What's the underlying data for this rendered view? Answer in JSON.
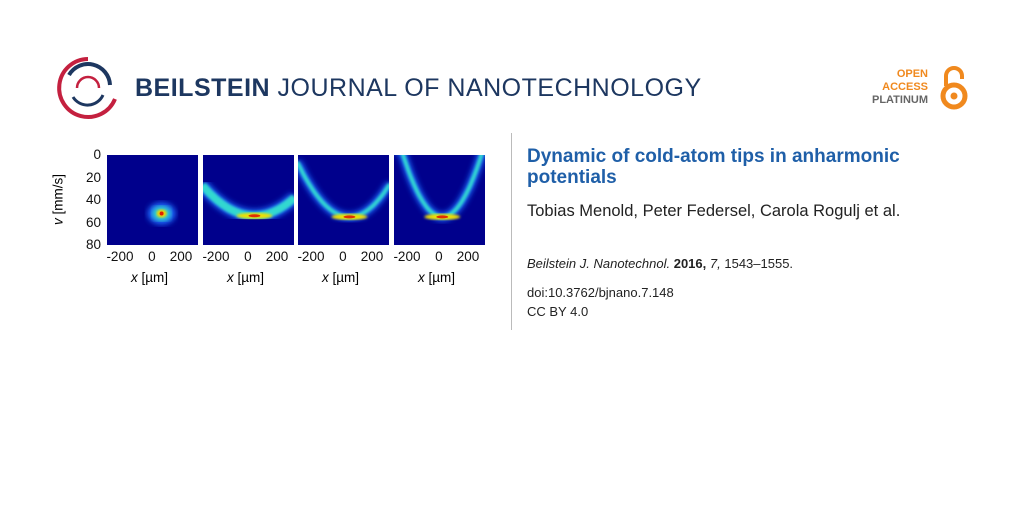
{
  "header": {
    "journal_bold": "BEILSTEIN",
    "journal_rest": " JOURNAL OF NANOTECHNOLOGY",
    "oa": [
      "OPEN",
      "ACCESS",
      "PLATINUM"
    ],
    "colors": {
      "navy": "#1d3760",
      "orange": "#f0891e",
      "red": "#c4203f",
      "gray": "#666666"
    }
  },
  "article": {
    "title": "Dynamic of cold-atom tips in anharmonic potentials",
    "authors": "Tobias Menold, Peter Federsel, Carola Rogulj et al.",
    "journal_abbrev": "Beilstein J. Nanotechnol.",
    "year": "2016,",
    "volume": "7,",
    "pages": "1543–1555.",
    "doi": "doi:10.3762/bjnano.7.148",
    "license": "CC BY 4.0"
  },
  "chart_data": {
    "type": "heatmap",
    "panels": 4,
    "ylabel_var": "v",
    "ylabel_unit": " [mm/s]",
    "xlabel_var": "x",
    "xlabel_unit": " [µm]",
    "yticks": [
      "0",
      "20",
      "40",
      "60",
      "80"
    ],
    "xticks": [
      "-200",
      "0",
      "200"
    ],
    "xlim": [
      -285,
      290
    ],
    "ylim": [
      80,
      0
    ],
    "colormap": "jet",
    "shapes": [
      {
        "kind": "blob",
        "center": [
          60,
          52
        ]
      },
      {
        "kind": "arc",
        "vertex": [
          40,
          54
        ],
        "spread": "small"
      },
      {
        "kind": "arc",
        "vertex": [
          40,
          55
        ],
        "spread": "medium"
      },
      {
        "kind": "arc",
        "vertex": [
          20,
          55
        ],
        "spread": "large"
      }
    ]
  }
}
